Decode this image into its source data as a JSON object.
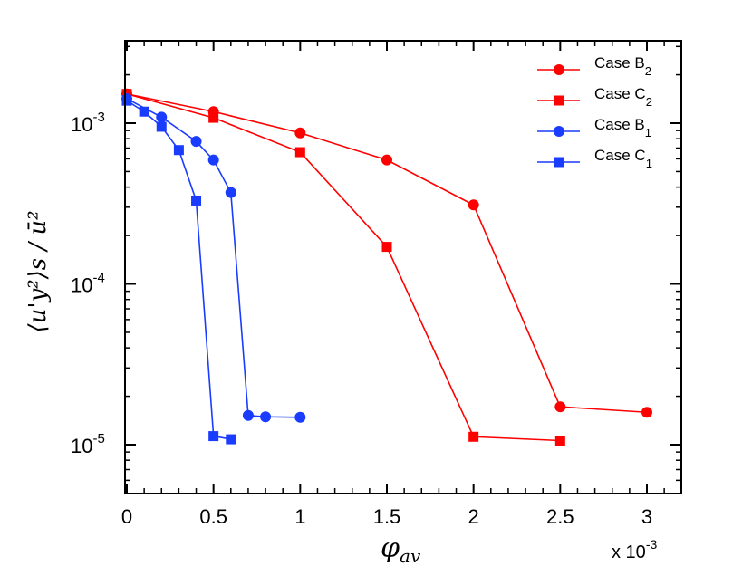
{
  "chart_data": {
    "type": "line",
    "xlabel": "φ",
    "xlabel_sub": "av",
    "x_multiplier": "x 10",
    "x_multiplier_exp": "-3",
    "ylabel": "⟨u'y²⟩s / ū²",
    "xlim": [
      0,
      3.2
    ],
    "ylim": [
      5e-06,
      0.003
    ],
    "y_scale": "log",
    "x_ticks": [
      0,
      0.5,
      1,
      1.5,
      2,
      2.5,
      3
    ],
    "x_tick_labels": [
      "0",
      "0.5",
      "1",
      "1.5",
      "2",
      "2.5",
      "3"
    ],
    "y_ticks": [
      1e-05,
      0.0001,
      0.001
    ],
    "y_tick_labels": [
      {
        "base": "10",
        "exp": "-5"
      },
      {
        "base": "10",
        "exp": "-4"
      },
      {
        "base": "10",
        "exp": "-3"
      }
    ],
    "grid": false,
    "legend_position": "top-right",
    "series": [
      {
        "name": "Case B",
        "sub": "2",
        "color": "#ff0000",
        "marker": "circle",
        "x": [
          0,
          0.5,
          1,
          1.5,
          2,
          2.5,
          3
        ],
        "y": [
          0.00152,
          0.00118,
          0.00087,
          0.00059,
          0.00031,
          1.72e-05,
          1.59e-05
        ]
      },
      {
        "name": "Case C",
        "sub": "2",
        "color": "#ff0000",
        "marker": "square",
        "x": [
          0,
          0.5,
          1,
          1.5,
          2,
          2.5
        ],
        "y": [
          0.00152,
          0.00108,
          0.00066,
          0.00017,
          1.12e-05,
          1.06e-05
        ]
      },
      {
        "name": "Case B",
        "sub": "1",
        "color": "#1a3cff",
        "marker": "circle",
        "x": [
          0,
          0.2,
          0.4,
          0.5,
          0.6,
          0.7,
          0.8,
          1
        ],
        "y": [
          0.00142,
          0.00109,
          0.00077,
          0.00059,
          0.00037,
          1.52e-05,
          1.49e-05,
          1.48e-05
        ]
      },
      {
        "name": "Case C",
        "sub": "1",
        "color": "#1a3cff",
        "marker": "square",
        "x": [
          0,
          0.1,
          0.2,
          0.3,
          0.4,
          0.5,
          0.6
        ],
        "y": [
          0.00138,
          0.00118,
          0.00095,
          0.00068,
          0.00033,
          1.13e-05,
          1.08e-05
        ]
      }
    ]
  }
}
